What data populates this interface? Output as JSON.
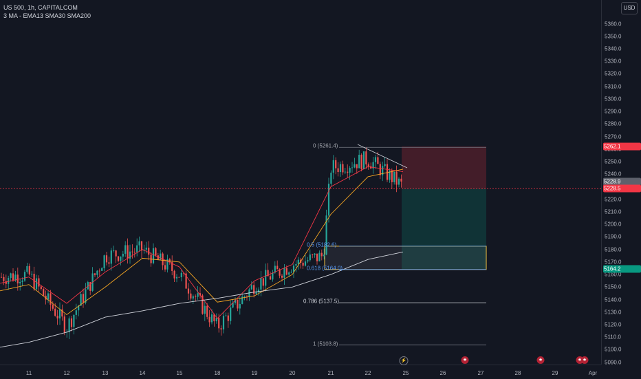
{
  "legend": {
    "symbol_line": "US 500, 1h, CAPITALCOM",
    "indicators_line": "3 MA - EMA13 SMA30 SMA200"
  },
  "currency_button": "USD",
  "colors": {
    "background": "#131722",
    "up": "#26a69a",
    "down": "#ef5350",
    "ema13": "#f23645",
    "sma30": "#f6a623",
    "sma200": "#d1d4dc",
    "fib": "#5b9cf6",
    "zone_border": "#f6c343"
  },
  "price_axis": {
    "ticks": [
      "5360.0",
      "5350.0",
      "5340.0",
      "5330.0",
      "5320.0",
      "5310.0",
      "5300.0",
      "5290.0",
      "5280.0",
      "5270.0",
      "5260.0",
      "5250.0",
      "5240.0",
      "5230.0",
      "5220.0",
      "5210.0",
      "5200.0",
      "5190.0",
      "5180.0",
      "5170.0",
      "5160.0",
      "5150.0",
      "5140.0",
      "5130.0",
      "5120.0",
      "5110.0",
      "5100.0",
      "5090.0"
    ]
  },
  "time_axis": {
    "ticks": [
      "11",
      "12",
      "13",
      "14",
      "15",
      "18",
      "19",
      "20",
      "21",
      "22",
      "25",
      "26",
      "27",
      "28",
      "29",
      "Apr"
    ]
  },
  "price_tags": {
    "stop": "5262.1",
    "current_gray": "5228.9",
    "current_red": "5228.5",
    "target": "5164.2"
  },
  "fibonacci": {
    "levels": [
      {
        "label": "0 (5261.4)",
        "price": 5261.4
      },
      {
        "label": "0.5 (5182.6)",
        "price": 5182.6
      },
      {
        "label": "0.618 (5164.0)",
        "price": 5164.0
      },
      {
        "label": "0.786 (5137.5)",
        "price": 5137.5
      },
      {
        "label": "1 (5103.8)",
        "price": 5103.8
      }
    ]
  },
  "position": {
    "stop": 5262.1,
    "entry": 5228.5,
    "target": 5164.2
  },
  "chart_data": {
    "type": "candlestick",
    "x": [
      "11",
      "12",
      "13",
      "14",
      "15",
      "18",
      "19",
      "20",
      "21",
      "22",
      "25"
    ],
    "series": [
      {
        "name": "EMA13",
        "values": [
          5158,
          5137,
          5162,
          5180,
          5166,
          5125,
          5155,
          5168,
          5230,
          5246,
          5242
        ]
      },
      {
        "name": "SMA30",
        "values": [
          5152,
          5128,
          5150,
          5173,
          5170,
          5138,
          5143,
          5160,
          5208,
          5238,
          5244
        ]
      },
      {
        "name": "SMA200",
        "values": [
          5106,
          5114,
          5126,
          5131,
          5137,
          5141,
          5146,
          5150,
          5160,
          5172,
          5178
        ]
      }
    ],
    "close": [
      5160,
      5118,
      5175,
      5179,
      5165,
      5118,
      5152,
      5170,
      5248,
      5246,
      5228.5
    ],
    "ylim": [
      5086,
      5368
    ]
  },
  "events": [
    "flash-icon",
    "us-flag-icon",
    "us-flag-icon",
    "us-flag-icon",
    "us-flag-icon"
  ]
}
